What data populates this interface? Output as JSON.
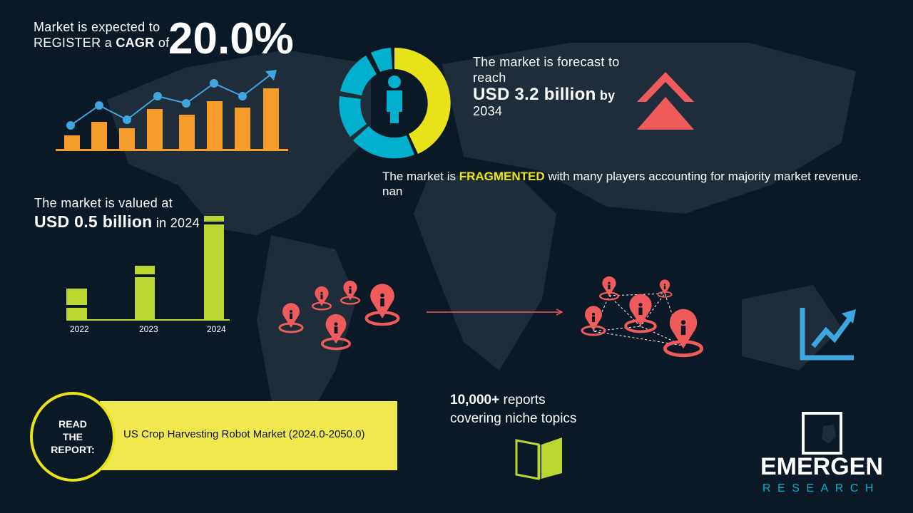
{
  "cagr": {
    "line1": "Market is expected to",
    "line2_pre": "REGISTER a ",
    "line2_bold": "CAGR",
    "line2_post": " of",
    "value": "20.0%"
  },
  "forecast": {
    "line1": "The market is forecast to",
    "line2": "reach",
    "value": "USD 3.2 billion",
    "by": " by",
    "year": "2034"
  },
  "fragmented": {
    "pre": "The market is ",
    "highlight": "FRAGMENTED",
    "post": " with many players accounting for majority market revenue. nan"
  },
  "valued": {
    "line1": "The market is valued at",
    "value": "USD 0.5 billion",
    "post": " in 2024"
  },
  "bar_years": [
    "2022",
    "2023",
    "2024"
  ],
  "reports": {
    "line1_bold": "10,000+",
    "line1_rest": " reports",
    "line2": "covering niche topics"
  },
  "read_report": {
    "label_lines": [
      "READ",
      "THE",
      "REPORT:"
    ],
    "title": "US Crop Harvesting Robot Market (2024.0-2050.0)"
  },
  "logo": {
    "name": "EMERGEN",
    "sub": "RESEARCH"
  },
  "colors": {
    "background": "#0b1826",
    "orange": "#f59c2a",
    "blue": "#3ea6e0",
    "yellow": "#e8e21a",
    "cyan": "#00b0cc",
    "red": "#ef5b5b",
    "lime": "#bcd631",
    "banner": "#f0e84f"
  }
}
